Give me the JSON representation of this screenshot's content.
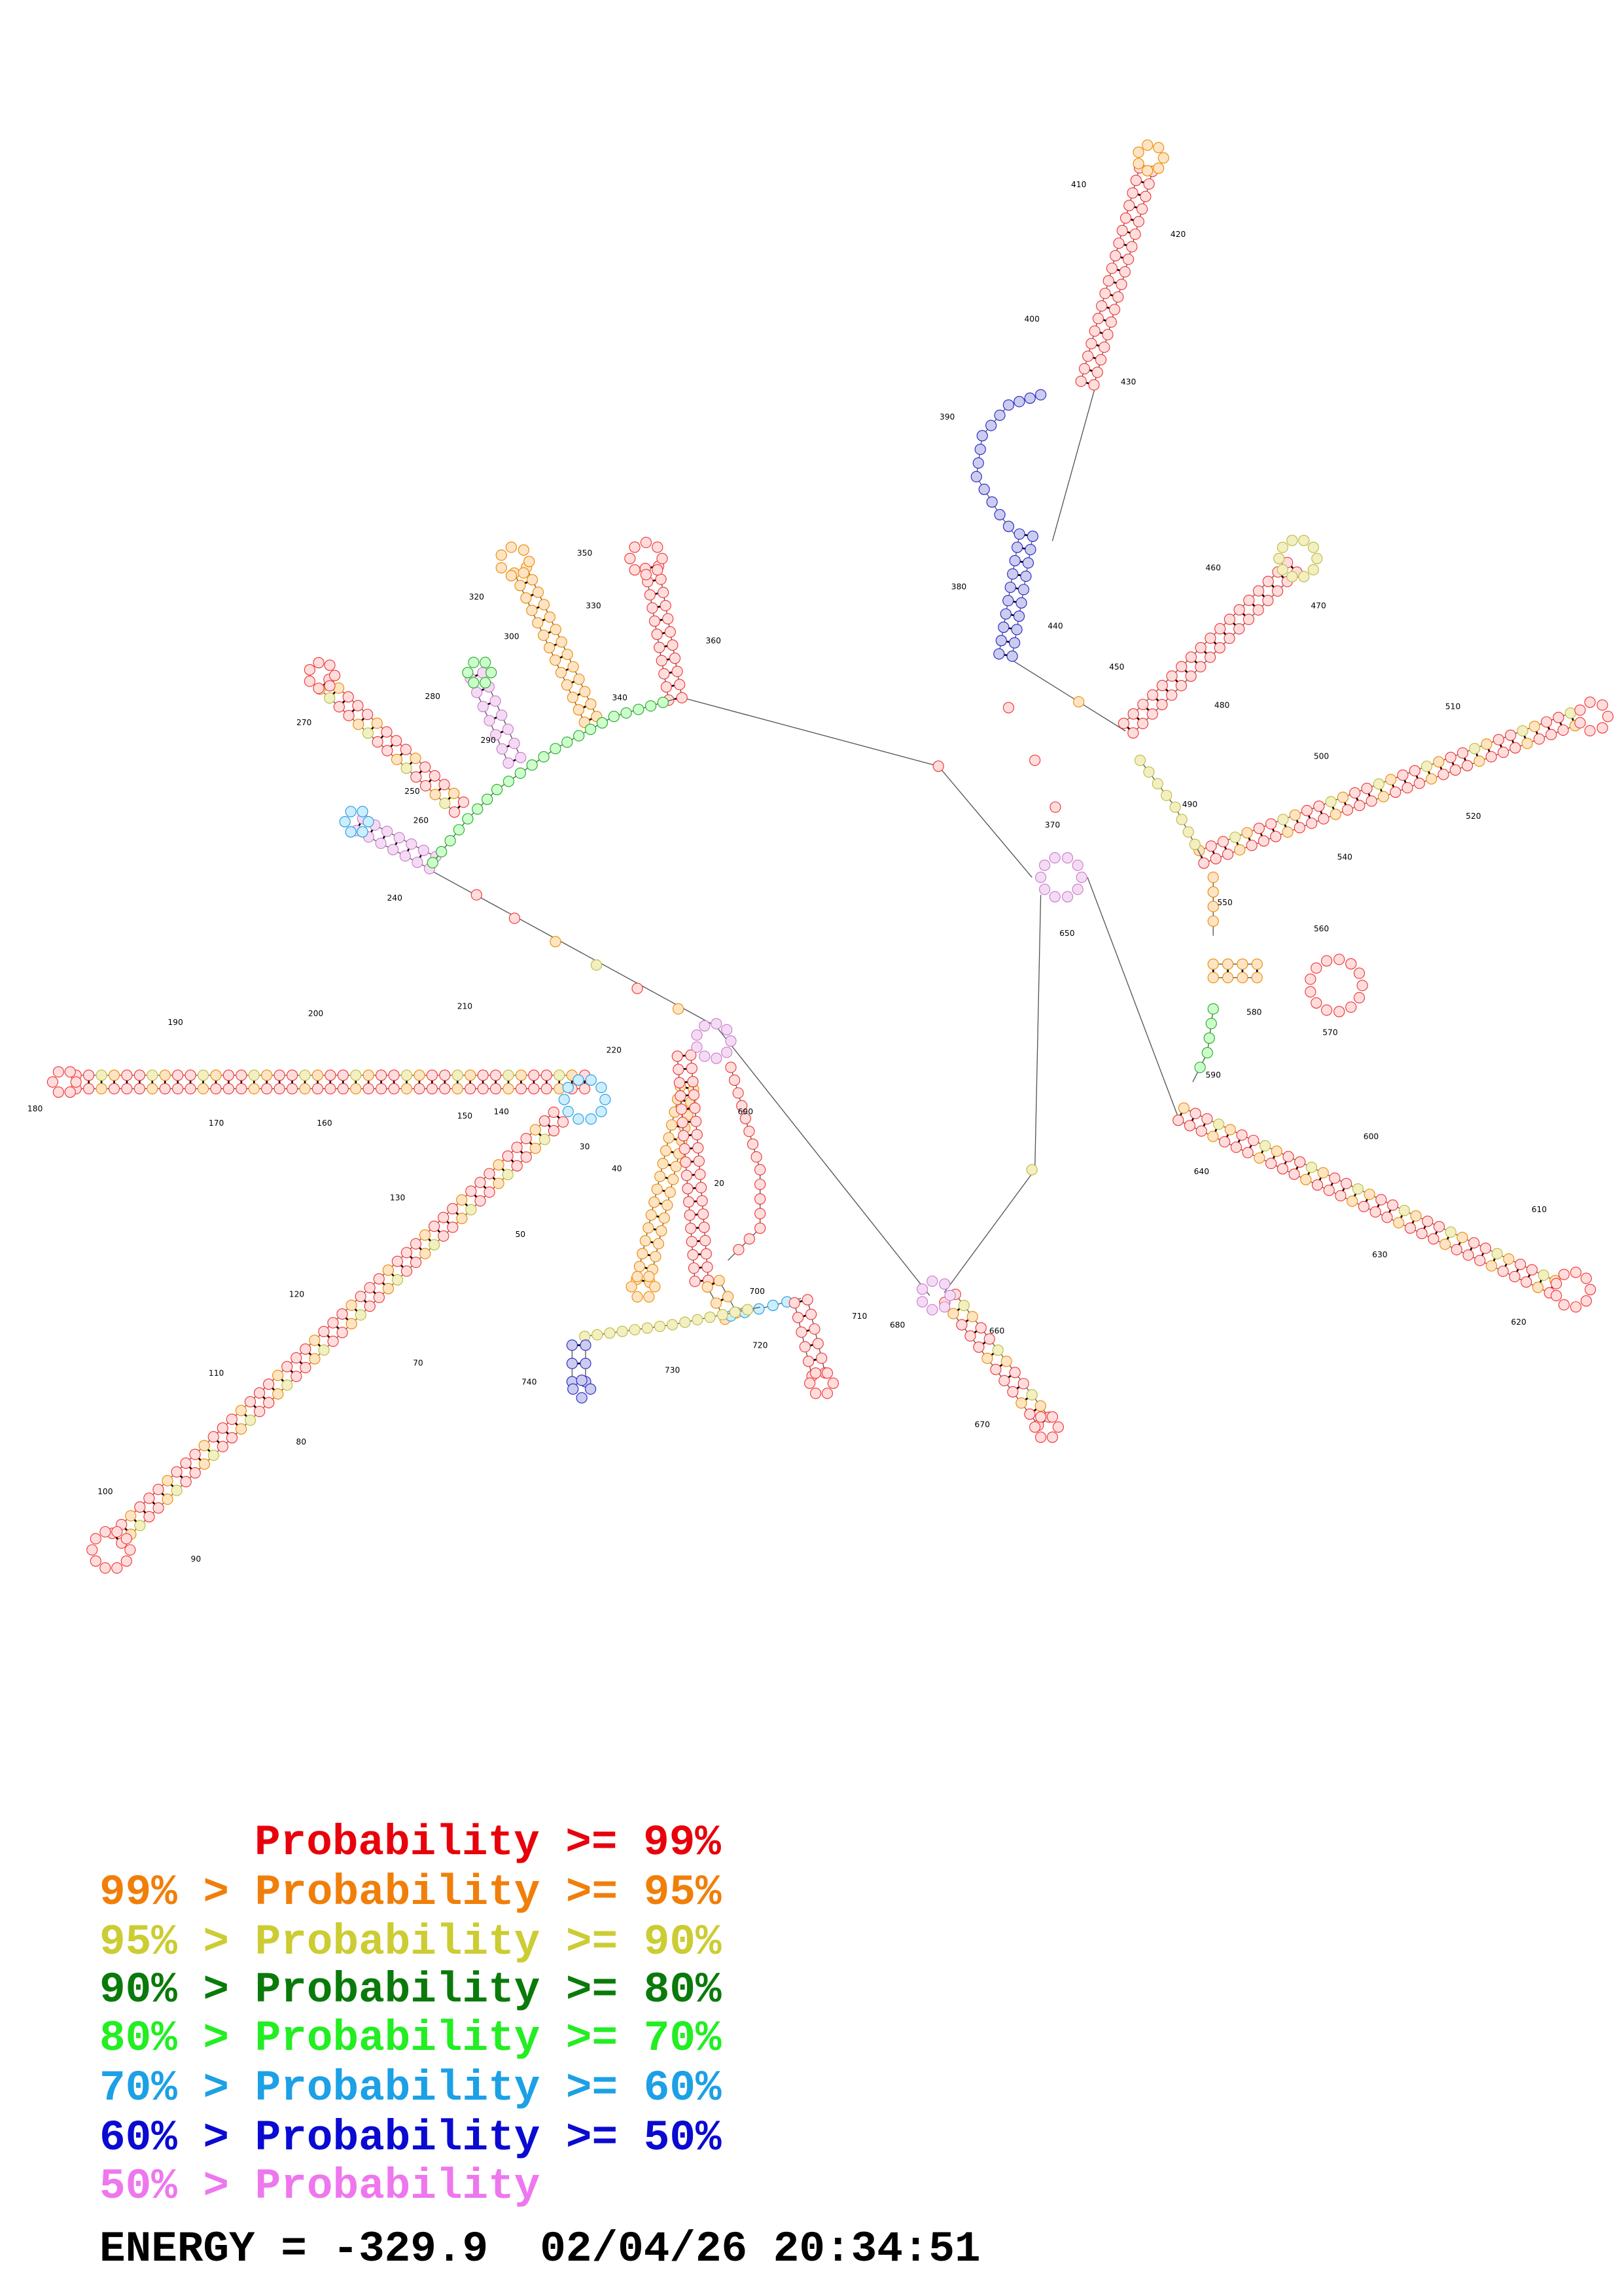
{
  "diagram": {
    "position_labels": [
      410,
      420,
      400,
      430,
      390,
      380,
      440,
      350,
      320,
      330,
      360,
      300,
      340,
      280,
      270,
      290,
      250,
      260,
      240,
      460,
      470,
      450,
      480,
      510,
      500,
      520,
      490,
      540,
      370,
      650,
      550,
      560,
      580,
      570,
      590,
      600,
      640,
      610,
      630,
      620,
      190,
      200,
      210,
      180,
      170,
      160,
      150,
      220,
      690,
      140,
      30,
      40,
      20,
      130,
      50,
      120,
      700,
      710,
      680,
      660,
      720,
      70,
      730,
      740,
      110,
      670,
      80,
      100,
      90
    ],
    "legend": [
      {
        "text": "Probability >= 99%",
        "color": "#e8000b"
      },
      {
        "text": "99% > Probability >= 95%",
        "color": "#f07f0a"
      },
      {
        "text": "95% > Probability >= 90%",
        "color": "#cccc33"
      },
      {
        "text": "90% > Probability >= 80%",
        "color": "#0a7a0a"
      },
      {
        "text": "80% > Probability >= 70%",
        "color": "#22ee22"
      },
      {
        "text": "70% > Probability >= 60%",
        "color": "#1ca0e6"
      },
      {
        "text": "60% > Probability >= 50%",
        "color": "#0a0ad2"
      },
      {
        "text": "50% > Probability",
        "color": "#ee77ee"
      }
    ],
    "energy_line": "ENERGY = -329.9  02/04/26 20:34:51"
  }
}
